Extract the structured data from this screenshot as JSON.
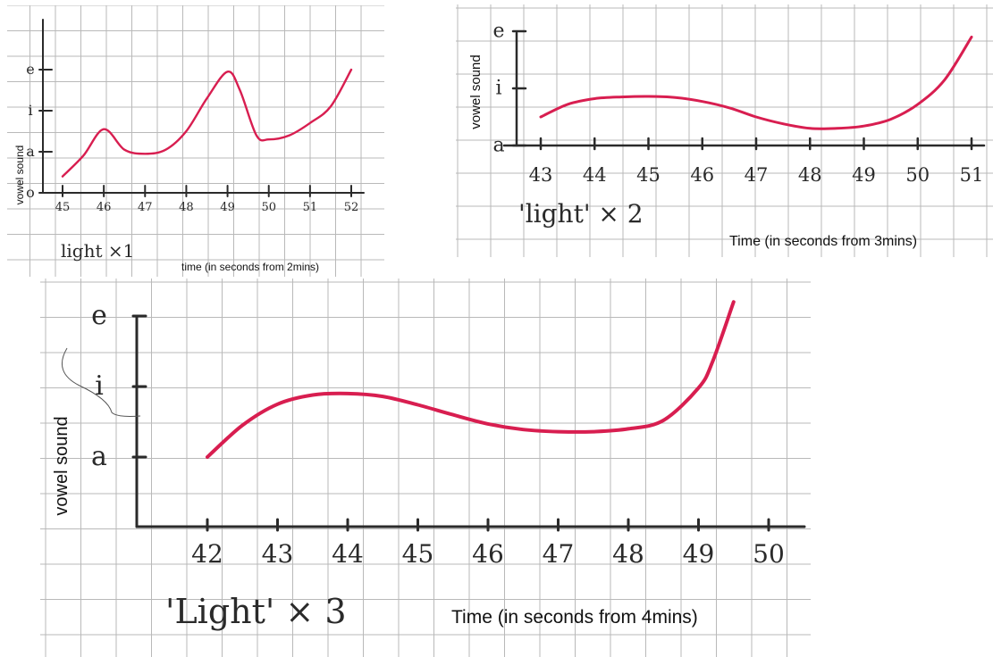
{
  "chart_data": [
    {
      "type": "line",
      "title": "light ×1",
      "xlabel": "time (in seconds from 2mins)",
      "ylabel": "vowel sound",
      "x_ticks": [
        "45",
        "46",
        "47",
        "48",
        "49",
        "50",
        "51",
        "52"
      ],
      "y_ticks": [
        "o",
        "a",
        "i",
        "e"
      ],
      "xlim": [
        45,
        52
      ],
      "ylim": [
        0,
        3
      ],
      "series": [
        {
          "x": [
            45,
            45.5,
            46,
            46.5,
            47,
            47.5,
            48,
            48.5,
            49,
            49.3,
            49.7,
            50,
            50.5,
            51,
            51.5,
            52
          ],
          "y": [
            0.4,
            0.9,
            1.55,
            1.05,
            0.95,
            1.05,
            1.5,
            2.3,
            2.95,
            2.5,
            1.4,
            1.3,
            1.4,
            1.7,
            2.1,
            3.0
          ]
        }
      ]
    },
    {
      "type": "line",
      "title": "'light' × 2",
      "xlabel": "Time (in seconds from 3mins)",
      "ylabel": "vowel sound",
      "x_ticks": [
        "43",
        "44",
        "45",
        "46",
        "47",
        "48",
        "49",
        "50",
        "51"
      ],
      "y_ticks": [
        "a",
        "i",
        "e"
      ],
      "xlim": [
        43,
        51
      ],
      "ylim": [
        0,
        2
      ],
      "series": [
        {
          "x": [
            43,
            43.5,
            44,
            44.5,
            45,
            45.5,
            46,
            46.5,
            47,
            47.5,
            48,
            48.5,
            49,
            49.5,
            50,
            50.5,
            51
          ],
          "y": [
            0.5,
            0.72,
            0.82,
            0.85,
            0.86,
            0.84,
            0.77,
            0.66,
            0.5,
            0.38,
            0.3,
            0.3,
            0.34,
            0.46,
            0.72,
            1.15,
            1.9
          ]
        }
      ]
    },
    {
      "type": "line",
      "title": "'Light' × 3",
      "xlabel": "Time (in seconds from 4mins)",
      "ylabel": "vowel sound",
      "x_ticks": [
        "42",
        "43",
        "44",
        "45",
        "46",
        "47",
        "48",
        "49",
        "50"
      ],
      "y_ticks": [
        "a",
        "i",
        "e"
      ],
      "xlim": [
        42,
        50
      ],
      "ylim": [
        0,
        2
      ],
      "series": [
        {
          "x": [
            42,
            42.5,
            43,
            43.5,
            44,
            44.5,
            45,
            45.5,
            46,
            46.5,
            47,
            47.5,
            48,
            48.5,
            49,
            49.2,
            49.5
          ],
          "y": [
            0,
            0.45,
            0.75,
            0.88,
            0.9,
            0.86,
            0.74,
            0.6,
            0.47,
            0.39,
            0.36,
            0.36,
            0.4,
            0.52,
            0.98,
            1.35,
            2.2
          ]
        }
      ]
    }
  ],
  "style": {
    "curve_color": "#d81e50",
    "axis_color": "#2a2a2a",
    "grid_color": "#b9b9b9"
  }
}
